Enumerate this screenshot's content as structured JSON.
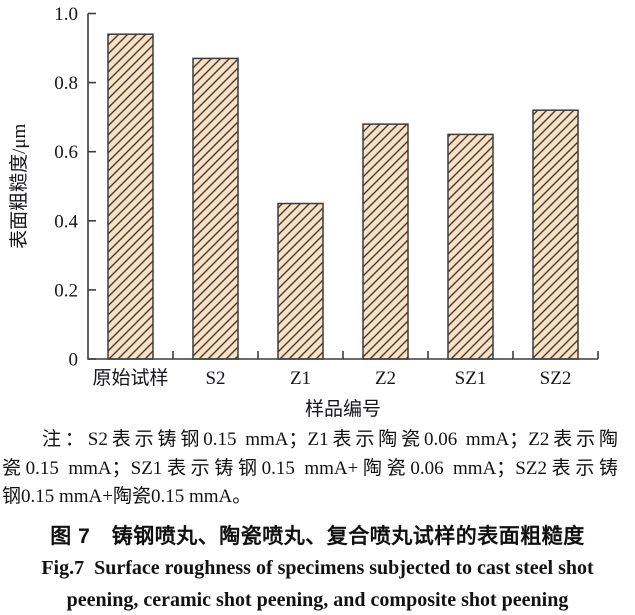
{
  "chart_data": {
    "type": "bar",
    "categories": [
      "原始试样",
      "S2",
      "Z1",
      "Z2",
      "SZ1",
      "SZ2"
    ],
    "values": [
      0.94,
      0.87,
      0.45,
      0.68,
      0.65,
      0.72
    ],
    "title": "",
    "xlabel": "样品编号",
    "ylabel": "表面粗糙度/μm",
    "ylim": [
      0,
      1.0
    ],
    "yticks": [
      0,
      0.2,
      0.4,
      0.6,
      0.8,
      1.0
    ],
    "ytick_labels": [
      "0",
      "0.2",
      "0.4",
      "0.6",
      "0.8",
      "1.0"
    ],
    "grid": false,
    "legend": false,
    "bar_style": {
      "fill": "#FADFC1",
      "hatch": "diagonal-forward-slash",
      "hatch_color": "#3C3C3C",
      "edge_color": "#3C3C3C"
    },
    "axis_color": "#3C3C3C"
  },
  "note": {
    "lines": [
      "注：S2表示铸钢0.15 mmA；Z1表示陶瓷0.06 mmA；Z2表示陶",
      "瓷0.15 mmA；SZ1表示铸钢0.15 mmA+陶瓷0.06 mmA；SZ2表示铸",
      "钢0.15 mmA+陶瓷0.15 mmA。"
    ]
  },
  "caption": {
    "zh": "图 7　铸钢喷丸、陶瓷喷丸、复合喷丸试样的表面粗糙度",
    "en_line1": "Fig.7  Surface roughness of specimens subjected to cast steel shot",
    "en_line2": "peening, ceramic shot peening, and composite shot peening"
  }
}
